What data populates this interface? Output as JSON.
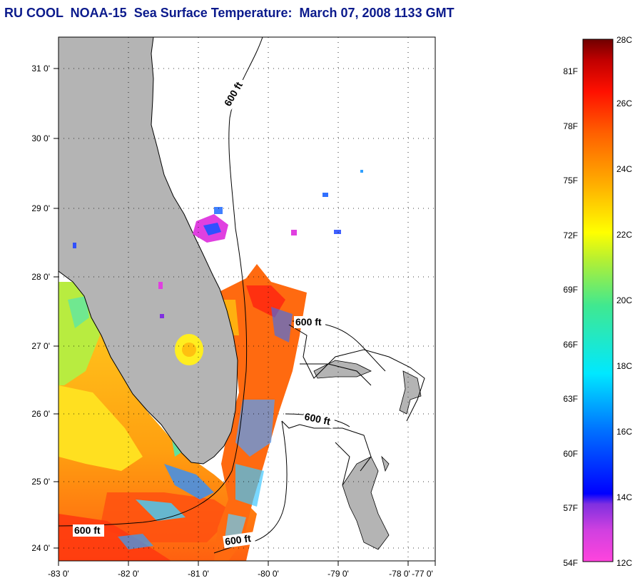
{
  "title": "RU COOL  NOAA-15  Sea Surface Temperature:  March 07, 2008 1133 GMT",
  "map": {
    "lon_ticks": [
      "-83 0'",
      "-82 0'",
      "-81 0'",
      "-80 0'",
      "-79 0'",
      "-78 0'",
      "-77 0'"
    ],
    "lat_ticks": [
      "24 0'",
      "25 0'",
      "26 0'",
      "27 0'",
      "28 0'",
      "29 0'",
      "30 0'",
      "31 0'"
    ],
    "contour_labels": [
      "600 ft",
      "600 ft",
      "600 ft",
      "600 ft",
      "600 ft"
    ],
    "colors": {
      "land": "#b4b4b4",
      "frame": "#000000",
      "ocean_no_data": "#ffffff"
    }
  },
  "colorbar": {
    "fahrenheit": [
      "54F",
      "57F",
      "60F",
      "63F",
      "66F",
      "69F",
      "72F",
      "75F",
      "78F",
      "81F"
    ],
    "celsius": [
      "12C",
      "14C",
      "16C",
      "18C",
      "20C",
      "22C",
      "24C",
      "26C",
      "28C"
    ],
    "stops": [
      "#ff44dd",
      "#c040e0",
      "#7030e0",
      "#0000ff",
      "#0080ff",
      "#00e0ff",
      "#40e880",
      "#a0f040",
      "#ffff00",
      "#ffb000",
      "#ff6000",
      "#ff1000",
      "#d00000",
      "#7a0000"
    ]
  }
}
